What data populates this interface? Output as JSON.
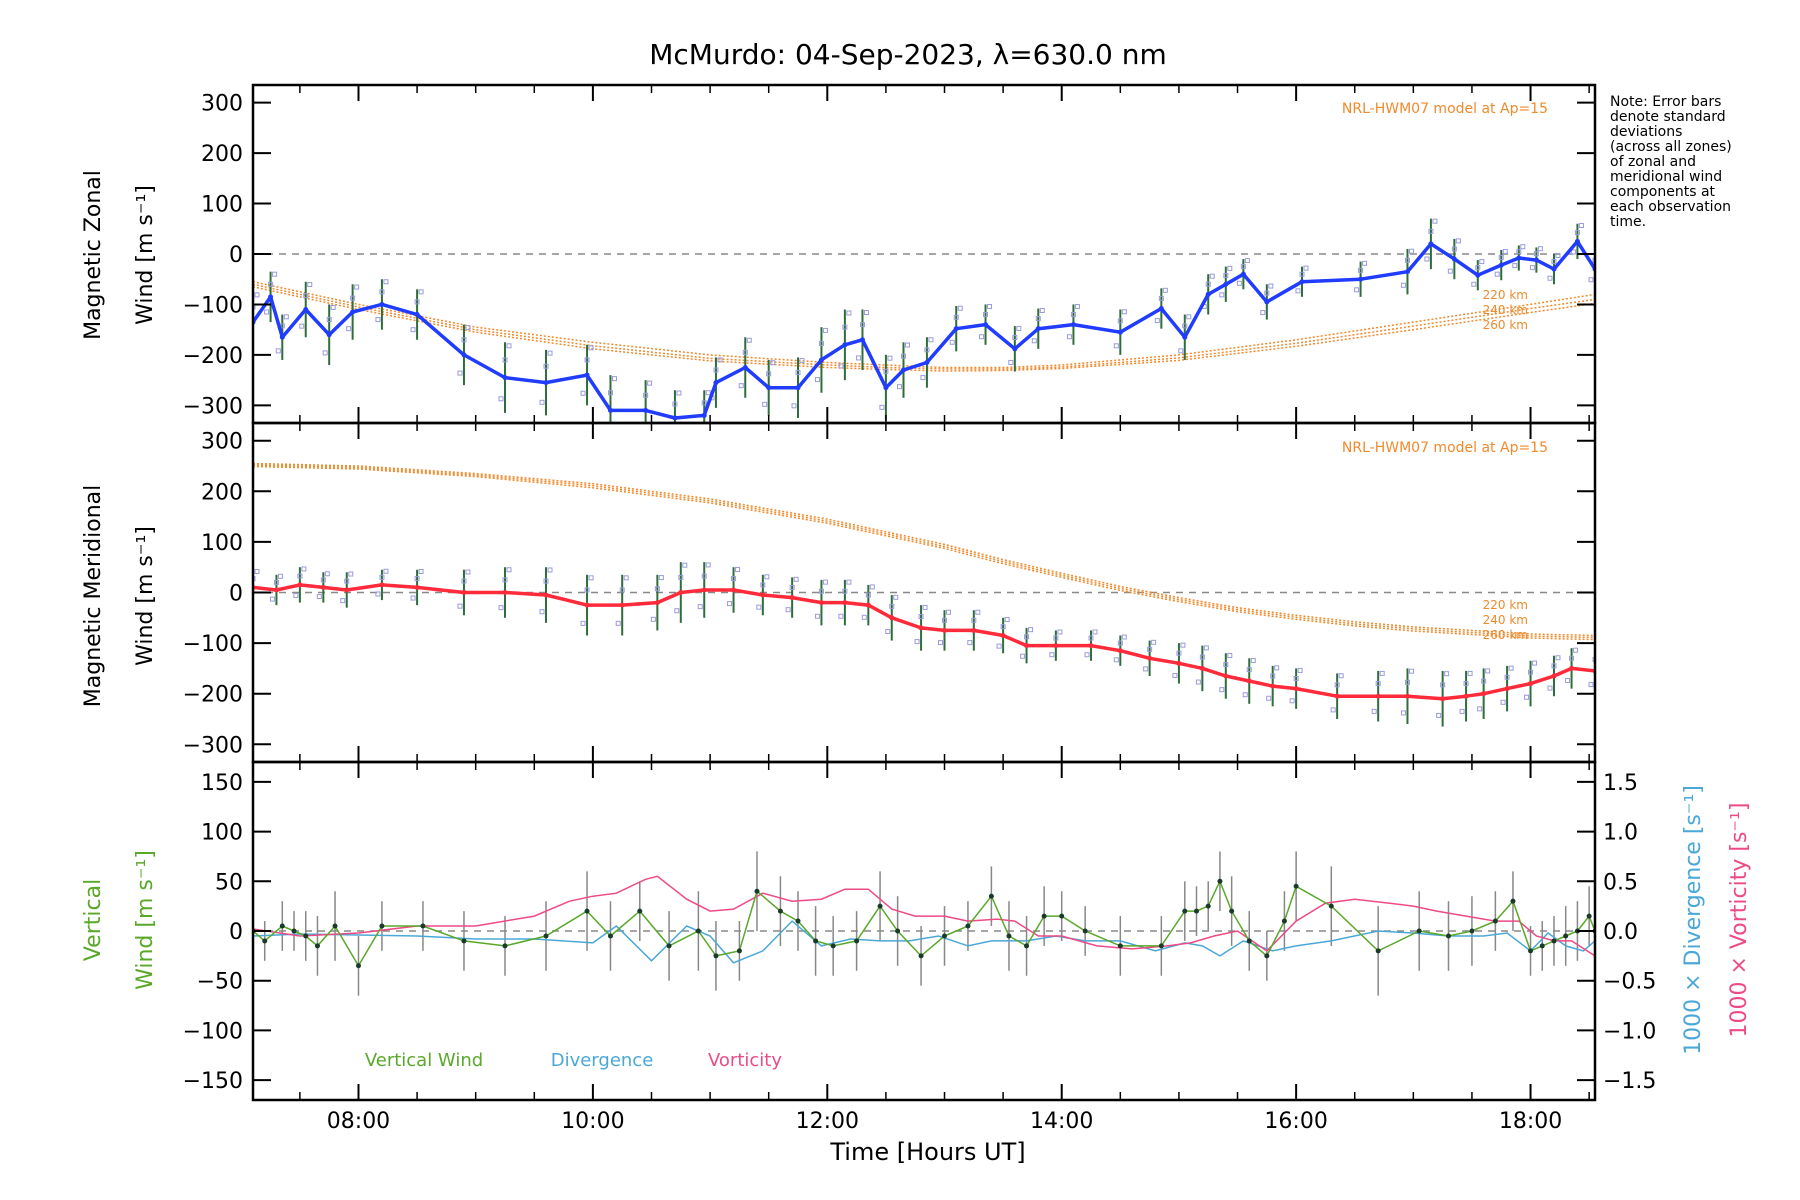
{
  "colors": {
    "zonal": "#1f3cff",
    "meridional": "#ff2a3a",
    "model": "#f08a2c",
    "vertical": "#5aa82a",
    "divergence": "#4aa8d8",
    "vorticity": "#ee4a86",
    "errorbar": "#555555",
    "zero": "#888888",
    "zone_scatter": "#9a9ae0"
  },
  "note_lines": [
    "Note: Error bars",
    "denote standard",
    "deviations",
    "(across all zones)",
    "of zonal and",
    "meridional wind",
    "components at",
    "each observation",
    "time."
  ],
  "chart_data": [
    {
      "id": "zonal",
      "type": "line",
      "title": "McMurdo: 04-Sep-2023, λ=630.0 nm",
      "ylabel_lines": [
        "Magnetic Zonal",
        "Wind [m s⁻¹]"
      ],
      "xlim": [
        7.1,
        18.55
      ],
      "ylim": [
        -335,
        335
      ],
      "yticks": [
        300,
        200,
        100,
        0,
        -100,
        -200,
        -300
      ],
      "ytick_labels": [
        "300",
        "200",
        "100",
        "0",
        "−100",
        "−200",
        "−300"
      ],
      "model_label": "NRL-HWM07 model at Ap=15",
      "model_altitude_labels": [
        "220 km",
        "240 km",
        "260 km"
      ],
      "series": [
        {
          "name": "Zonal wind",
          "x": [
            7.1,
            7.25,
            7.35,
            7.55,
            7.75,
            7.95,
            8.2,
            8.5,
            8.9,
            9.25,
            9.6,
            9.95,
            10.15,
            10.45,
            10.7,
            10.95,
            11.05,
            11.3,
            11.5,
            11.75,
            11.95,
            12.15,
            12.3,
            12.5,
            12.65,
            12.85,
            13.1,
            13.35,
            13.6,
            13.8,
            14.1,
            14.5,
            14.85,
            15.05,
            15.25,
            15.4,
            15.55,
            15.75,
            16.05,
            16.55,
            16.95,
            17.15,
            17.35,
            17.55,
            17.75,
            17.9,
            18.05,
            18.2,
            18.4,
            18.55
          ],
          "y": [
            -135,
            -85,
            -165,
            -110,
            -160,
            -115,
            -100,
            -120,
            -200,
            -245,
            -255,
            -240,
            -310,
            -310,
            -325,
            -320,
            -255,
            -225,
            -265,
            -265,
            -210,
            -180,
            -170,
            -265,
            -230,
            -215,
            -148,
            -140,
            -188,
            -148,
            -140,
            -155,
            -108,
            -165,
            -80,
            -60,
            -40,
            -95,
            -55,
            -50,
            -35,
            20,
            -10,
            -42,
            -22,
            -8,
            -12,
            -30,
            25,
            -30
          ],
          "err": [
            60,
            50,
            45,
            55,
            60,
            55,
            50,
            50,
            60,
            70,
            65,
            60,
            70,
            60,
            55,
            50,
            50,
            60,
            55,
            60,
            65,
            70,
            60,
            65,
            55,
            50,
            45,
            40,
            45,
            40,
            40,
            45,
            40,
            45,
            40,
            35,
            30,
            35,
            30,
            35,
            45,
            50,
            40,
            30,
            30,
            25,
            25,
            30,
            35,
            35
          ]
        },
        {
          "name": "Model 220 km",
          "x": [
            7.1,
            8.0,
            9.0,
            10.0,
            11.0,
            12.0,
            12.5,
            13.0,
            13.5,
            14.0,
            15.0,
            16.0,
            17.0,
            18.0,
            18.55
          ],
          "y": [
            -55,
            -100,
            -145,
            -175,
            -200,
            -215,
            -220,
            -225,
            -225,
            -220,
            -200,
            -170,
            -135,
            -100,
            -80
          ]
        },
        {
          "name": "Model 240 km",
          "x": [
            7.1,
            8.0,
            9.0,
            10.0,
            11.0,
            12.0,
            12.5,
            13.0,
            13.5,
            14.0,
            15.0,
            16.0,
            17.0,
            18.0,
            18.55
          ],
          "y": [
            -60,
            -105,
            -150,
            -182,
            -207,
            -220,
            -225,
            -228,
            -228,
            -224,
            -206,
            -177,
            -143,
            -108,
            -90
          ]
        },
        {
          "name": "Model 260 km",
          "x": [
            7.1,
            8.0,
            9.0,
            10.0,
            11.0,
            12.0,
            12.5,
            13.0,
            13.5,
            14.0,
            15.0,
            16.0,
            17.0,
            18.0,
            18.55
          ],
          "y": [
            -65,
            -110,
            -155,
            -188,
            -212,
            -225,
            -229,
            -232,
            -231,
            -227,
            -211,
            -183,
            -150,
            -116,
            -98
          ]
        }
      ]
    },
    {
      "id": "meridional",
      "type": "line",
      "ylabel_lines": [
        "Magnetic Meridional",
        "Wind [m s⁻¹]"
      ],
      "xlim": [
        7.1,
        18.55
      ],
      "ylim": [
        -335,
        335
      ],
      "yticks": [
        300,
        200,
        100,
        0,
        -100,
        -200,
        -300
      ],
      "ytick_labels": [
        "300",
        "200",
        "100",
        "0",
        "−100",
        "−200",
        "−300"
      ],
      "model_label": "NRL-HWM07 model at Ap=15",
      "model_altitude_labels": [
        "220 km",
        "240 km",
        "260 km"
      ],
      "series": [
        {
          "name": "Meridional wind",
          "x": [
            7.1,
            7.3,
            7.5,
            7.7,
            7.9,
            8.2,
            8.5,
            8.9,
            9.25,
            9.6,
            9.95,
            10.25,
            10.55,
            10.75,
            10.95,
            11.2,
            11.45,
            11.7,
            11.95,
            12.15,
            12.35,
            12.55,
            12.8,
            13.0,
            13.25,
            13.5,
            13.7,
            13.95,
            14.25,
            14.5,
            14.75,
            15.0,
            15.2,
            15.4,
            15.6,
            15.8,
            16.0,
            16.35,
            16.7,
            16.95,
            17.25,
            17.45,
            17.6,
            17.8,
            18.0,
            18.2,
            18.35,
            18.55
          ],
          "y": [
            10,
            5,
            15,
            10,
            5,
            15,
            10,
            0,
            0,
            -5,
            -25,
            -25,
            -20,
            0,
            5,
            5,
            -5,
            -10,
            -20,
            -20,
            -25,
            -50,
            -70,
            -75,
            -75,
            -85,
            -105,
            -105,
            -105,
            -115,
            -130,
            -140,
            -150,
            -165,
            -175,
            -185,
            -190,
            -205,
            -205,
            -205,
            -210,
            -205,
            -200,
            -190,
            -180,
            -165,
            -150,
            -155
          ],
          "err": [
            35,
            30,
            35,
            30,
            35,
            30,
            35,
            45,
            50,
            55,
            60,
            60,
            55,
            60,
            55,
            45,
            40,
            40,
            45,
            45,
            40,
            45,
            45,
            40,
            40,
            35,
            35,
            30,
            30,
            30,
            35,
            40,
            45,
            45,
            45,
            40,
            40,
            45,
            50,
            55,
            55,
            50,
            50,
            45,
            45,
            40,
            40,
            45
          ]
        },
        {
          "name": "Model 220 km",
          "x": [
            7.1,
            8.0,
            9.0,
            10.0,
            11.0,
            12.0,
            12.5,
            13.0,
            13.5,
            14.0,
            14.5,
            15.0,
            15.5,
            16.0,
            16.5,
            17.0,
            17.5,
            18.0,
            18.55
          ],
          "y": [
            255,
            250,
            235,
            215,
            185,
            145,
            120,
            95,
            65,
            38,
            12,
            -10,
            -30,
            -45,
            -58,
            -68,
            -75,
            -82,
            -85
          ]
        },
        {
          "name": "Model 240 km",
          "x": [
            7.1,
            8.0,
            9.0,
            10.0,
            11.0,
            12.0,
            12.5,
            13.0,
            13.5,
            14.0,
            14.5,
            15.0,
            15.5,
            16.0,
            16.5,
            17.0,
            17.5,
            18.0,
            18.55
          ],
          "y": [
            252,
            247,
            232,
            211,
            181,
            141,
            116,
            91,
            61,
            34,
            8,
            -14,
            -34,
            -49,
            -62,
            -72,
            -79,
            -86,
            -89
          ]
        },
        {
          "name": "Model 260 km",
          "x": [
            7.1,
            8.0,
            9.0,
            10.0,
            11.0,
            12.0,
            12.5,
            13.0,
            13.5,
            14.0,
            14.5,
            15.0,
            15.5,
            16.0,
            16.5,
            17.0,
            17.5,
            18.0,
            18.55
          ],
          "y": [
            249,
            244,
            229,
            207,
            177,
            137,
            112,
            87,
            57,
            30,
            4,
            -18,
            -38,
            -53,
            -66,
            -76,
            -83,
            -90,
            -93
          ]
        }
      ]
    },
    {
      "id": "vertical",
      "type": "line",
      "xlabel": "Time [Hours UT]",
      "xlim": [
        7.1,
        18.55
      ],
      "xticks": [
        8,
        10,
        12,
        14,
        16,
        18
      ],
      "xtick_labels": [
        "08:00",
        "10:00",
        "12:00",
        "14:00",
        "16:00",
        "18:00"
      ],
      "ylabel_lines": [
        "Vertical",
        "Wind [m s⁻¹]"
      ],
      "ylim": [
        -170,
        170
      ],
      "yticks": [
        150,
        100,
        50,
        0,
        -50,
        -100,
        -150
      ],
      "ytick_labels": [
        "150",
        "100",
        "50",
        "0",
        "−50",
        "−100",
        "−150"
      ],
      "y2label_lines": [
        "1000 × Divergence [s⁻¹]",
        "1000 × Vorticity [s⁻¹]"
      ],
      "y2lim": [
        -1.7,
        1.7
      ],
      "y2ticks": [
        1.5,
        1.0,
        0.5,
        0.0,
        -0.5,
        -1.0,
        -1.5
      ],
      "y2tick_labels": [
        "1.5",
        "1.0",
        "0.5",
        "0.0",
        "−0.5",
        "−1.0",
        "−1.5"
      ],
      "legend": [
        "Vertical Wind",
        "Divergence",
        "Vorticity"
      ],
      "series": [
        {
          "name": "Vertical Wind",
          "axis": "left",
          "x": [
            7.1,
            7.2,
            7.35,
            7.45,
            7.55,
            7.65,
            7.8,
            8.0,
            8.2,
            8.55,
            8.9,
            9.25,
            9.6,
            9.95,
            10.15,
            10.4,
            10.65,
            10.9,
            11.05,
            11.25,
            11.4,
            11.6,
            11.75,
            11.9,
            12.05,
            12.25,
            12.45,
            12.6,
            12.8,
            13.0,
            13.2,
            13.4,
            13.55,
            13.7,
            13.85,
            14.0,
            14.2,
            14.5,
            14.85,
            15.05,
            15.15,
            15.25,
            15.35,
            15.45,
            15.6,
            15.75,
            15.9,
            16.0,
            16.3,
            16.7,
            17.05,
            17.3,
            17.5,
            17.7,
            17.85,
            18.0,
            18.1,
            18.2,
            18.3,
            18.4,
            18.5,
            18.55
          ],
          "y": [
            0,
            -10,
            5,
            0,
            -5,
            -15,
            5,
            -35,
            5,
            5,
            -10,
            -15,
            -5,
            20,
            -5,
            20,
            -15,
            0,
            -25,
            -20,
            40,
            20,
            10,
            -10,
            -15,
            -10,
            25,
            0,
            -25,
            -5,
            5,
            35,
            -5,
            -15,
            15,
            15,
            0,
            -15,
            -15,
            20,
            20,
            25,
            50,
            20,
            -10,
            -25,
            10,
            45,
            25,
            -20,
            0,
            -5,
            0,
            10,
            30,
            -20,
            -15,
            -10,
            -5,
            0,
            15,
            0
          ],
          "err": [
            25,
            20,
            25,
            20,
            25,
            30,
            35,
            30,
            25,
            25,
            30,
            30,
            35,
            40,
            35,
            30,
            35,
            40,
            35,
            30,
            40,
            35,
            30,
            35,
            30,
            30,
            35,
            35,
            30,
            30,
            25,
            30,
            35,
            30,
            30,
            25,
            25,
            30,
            30,
            30,
            25,
            25,
            30,
            35,
            30,
            25,
            30,
            35,
            40,
            45,
            40,
            35,
            35,
            30,
            30,
            25,
            25,
            25,
            30,
            30,
            30,
            30
          ]
        },
        {
          "name": "Divergence",
          "axis": "right",
          "x": [
            7.1,
            7.5,
            8.0,
            8.5,
            9.0,
            9.5,
            10.0,
            10.2,
            10.5,
            10.8,
            11.0,
            11.2,
            11.45,
            11.7,
            11.95,
            12.2,
            12.45,
            12.7,
            12.95,
            13.2,
            13.4,
            13.7,
            13.95,
            14.2,
            14.5,
            14.8,
            15.05,
            15.2,
            15.35,
            15.55,
            15.8,
            16.0,
            16.3,
            16.7,
            17.0,
            17.3,
            17.6,
            17.8,
            18.0,
            18.15,
            18.3,
            18.45,
            18.55
          ],
          "y": [
            -0.05,
            -0.03,
            -0.04,
            -0.05,
            -0.08,
            -0.08,
            -0.12,
            0.05,
            -0.3,
            0.05,
            -0.05,
            -0.32,
            -0.2,
            0.1,
            -0.15,
            -0.08,
            -0.1,
            -0.1,
            -0.05,
            -0.15,
            -0.1,
            -0.1,
            -0.05,
            -0.1,
            -0.1,
            -0.2,
            -0.12,
            -0.15,
            -0.25,
            -0.1,
            -0.2,
            -0.15,
            -0.1,
            0.0,
            -0.02,
            -0.05,
            -0.05,
            -0.02,
            -0.2,
            -0.02,
            -0.15,
            -0.2,
            -0.1
          ]
        },
        {
          "name": "Vorticity",
          "axis": "right",
          "x": [
            7.1,
            7.5,
            8.0,
            8.5,
            9.0,
            9.5,
            9.8,
            10.0,
            10.2,
            10.45,
            10.55,
            10.8,
            11.0,
            11.2,
            11.45,
            11.7,
            11.95,
            12.15,
            12.35,
            12.55,
            12.75,
            13.0,
            13.2,
            13.45,
            13.6,
            13.8,
            14.0,
            14.3,
            14.6,
            14.9,
            15.1,
            15.3,
            15.5,
            15.75,
            16.0,
            16.25,
            16.5,
            16.8,
            17.0,
            17.2,
            17.45,
            17.7,
            17.9,
            18.05,
            18.2,
            18.35,
            18.55
          ],
          "y": [
            0.02,
            -0.05,
            -0.02,
            0.05,
            0.05,
            0.15,
            0.3,
            0.35,
            0.38,
            0.52,
            0.55,
            0.32,
            0.2,
            0.22,
            0.38,
            0.3,
            0.32,
            0.42,
            0.42,
            0.22,
            0.15,
            0.15,
            0.1,
            0.12,
            0.1,
            -0.05,
            -0.05,
            -0.15,
            -0.18,
            -0.15,
            -0.12,
            -0.05,
            0.0,
            -0.2,
            0.1,
            0.28,
            0.32,
            0.28,
            0.25,
            0.2,
            0.15,
            0.1,
            0.1,
            -0.05,
            -0.1,
            -0.1,
            -0.25
          ]
        }
      ]
    }
  ]
}
